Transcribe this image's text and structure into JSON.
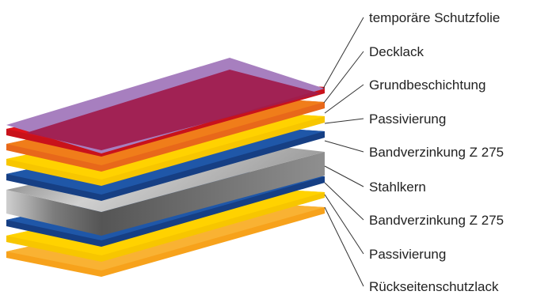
{
  "layers": [
    {
      "label": "temporäre Schutzfolie",
      "color": "#a77fbf",
      "icon": "film-layer-icon"
    },
    {
      "label": "Decklack",
      "color": "#d71920",
      "icon": "topcoat-layer-icon"
    },
    {
      "label": "Grundbeschichtung",
      "color": "#f07d1a",
      "icon": "primer-layer-icon"
    },
    {
      "label": "Passivierung",
      "color": "#ffd200",
      "icon": "passivation-layer-icon"
    },
    {
      "label": "Bandverzinkung Z 275",
      "color": "#1a4d9c",
      "icon": "zinc-layer-icon"
    },
    {
      "label": "Stahlkern",
      "color": "#8a8a8a",
      "icon": "steel-core-icon"
    },
    {
      "label": "Bandverzinkung Z 275",
      "color": "#1a4d9c",
      "icon": "zinc-layer-icon"
    },
    {
      "label": "Passivierung",
      "color": "#ffd200",
      "icon": "passivation-layer-icon"
    },
    {
      "label": "Rückseitenschutzlack",
      "color": "#f5a623",
      "icon": "backcoat-layer-icon"
    }
  ],
  "colors": {
    "film": "#a77fbf",
    "topcoat_face": "#a01e4e",
    "leader_line": "#333333"
  }
}
